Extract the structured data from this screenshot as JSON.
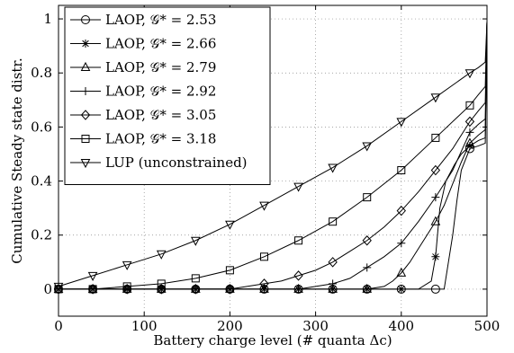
{
  "chart_data": {
    "type": "line",
    "xlabel": "Battery charge level (# quanta Δc)",
    "ylabel": "Cumulative Steady state distr.",
    "xlim": [
      0,
      500
    ],
    "ylim": [
      -0.1,
      1.05
    ],
    "xticks": [
      0,
      100,
      200,
      300,
      400,
      500
    ],
    "yticks": [
      0,
      0.2,
      0.4,
      0.6,
      0.8,
      1
    ],
    "grid": true,
    "legend_position": "top-left",
    "series": [
      {
        "label": "LAOP, 𝒢* = 2.53",
        "marker": "circle",
        "markers": [
          [
            0,
            0
          ],
          [
            40,
            0
          ],
          [
            80,
            0
          ],
          [
            120,
            0
          ],
          [
            160,
            0
          ],
          [
            200,
            0
          ],
          [
            240,
            0
          ],
          [
            280,
            0
          ],
          [
            320,
            0
          ],
          [
            360,
            0
          ],
          [
            400,
            0
          ],
          [
            440,
            0
          ],
          [
            480,
            0.52
          ]
        ],
        "line": [
          [
            0,
            0
          ],
          [
            440,
            0
          ],
          [
            450,
            0
          ],
          [
            455,
            0.1
          ],
          [
            460,
            0.2
          ],
          [
            465,
            0.33
          ],
          [
            470,
            0.44
          ],
          [
            480,
            0.52
          ],
          [
            490,
            0.53
          ],
          [
            498,
            0.54
          ],
          [
            500,
            0.99
          ]
        ]
      },
      {
        "label": "LAOP, 𝒢* = 2.66",
        "marker": "star",
        "markers": [
          [
            0,
            0
          ],
          [
            40,
            0
          ],
          [
            80,
            0
          ],
          [
            120,
            0
          ],
          [
            160,
            0
          ],
          [
            200,
            0
          ],
          [
            240,
            0
          ],
          [
            280,
            0
          ],
          [
            320,
            0
          ],
          [
            360,
            0
          ],
          [
            400,
            0
          ],
          [
            440,
            0.12
          ],
          [
            480,
            0.53
          ]
        ],
        "line": [
          [
            0,
            0
          ],
          [
            420,
            0
          ],
          [
            435,
            0.03
          ],
          [
            440,
            0.12
          ],
          [
            445,
            0.3
          ],
          [
            452,
            0.4
          ],
          [
            462,
            0.46
          ],
          [
            470,
            0.5
          ],
          [
            480,
            0.53
          ],
          [
            490,
            0.55
          ],
          [
            498,
            0.56
          ],
          [
            500,
            0.99
          ]
        ]
      },
      {
        "label": "LAOP, 𝒢* = 2.79",
        "marker": "triangle-up",
        "markers": [
          [
            0,
            0
          ],
          [
            40,
            0
          ],
          [
            80,
            0
          ],
          [
            120,
            0
          ],
          [
            160,
            0
          ],
          [
            200,
            0
          ],
          [
            240,
            0
          ],
          [
            280,
            0
          ],
          [
            320,
            0
          ],
          [
            360,
            0
          ],
          [
            400,
            0.06
          ],
          [
            440,
            0.25
          ],
          [
            480,
            0.54
          ]
        ],
        "line": [
          [
            0,
            0
          ],
          [
            360,
            0
          ],
          [
            380,
            0.01
          ],
          [
            390,
            0.03
          ],
          [
            400,
            0.06
          ],
          [
            410,
            0.1
          ],
          [
            420,
            0.15
          ],
          [
            430,
            0.2
          ],
          [
            440,
            0.25
          ],
          [
            450,
            0.31
          ],
          [
            460,
            0.39
          ],
          [
            470,
            0.47
          ],
          [
            480,
            0.54
          ],
          [
            490,
            0.57
          ],
          [
            498,
            0.59
          ],
          [
            500,
            0.99
          ]
        ]
      },
      {
        "label": "LAOP, 𝒢* = 2.92",
        "marker": "plus",
        "markers": [
          [
            0,
            0
          ],
          [
            40,
            0
          ],
          [
            80,
            0
          ],
          [
            120,
            0
          ],
          [
            160,
            0
          ],
          [
            200,
            0
          ],
          [
            240,
            0
          ],
          [
            280,
            0
          ],
          [
            320,
            0.02
          ],
          [
            360,
            0.08
          ],
          [
            400,
            0.17
          ],
          [
            440,
            0.34
          ],
          [
            480,
            0.58
          ]
        ],
        "line": [
          [
            0,
            0
          ],
          [
            280,
            0
          ],
          [
            300,
            0.01
          ],
          [
            320,
            0.02
          ],
          [
            340,
            0.04
          ],
          [
            360,
            0.08
          ],
          [
            380,
            0.12
          ],
          [
            400,
            0.17
          ],
          [
            420,
            0.25
          ],
          [
            440,
            0.34
          ],
          [
            460,
            0.44
          ],
          [
            480,
            0.58
          ],
          [
            490,
            0.61
          ],
          [
            498,
            0.63
          ],
          [
            500,
            0.99
          ]
        ]
      },
      {
        "label": "LAOP, 𝒢* = 3.05",
        "marker": "diamond",
        "markers": [
          [
            0,
            0
          ],
          [
            40,
            0
          ],
          [
            80,
            0
          ],
          [
            120,
            0
          ],
          [
            160,
            0
          ],
          [
            200,
            0
          ],
          [
            240,
            0.02
          ],
          [
            280,
            0.05
          ],
          [
            320,
            0.1
          ],
          [
            360,
            0.18
          ],
          [
            400,
            0.29
          ],
          [
            440,
            0.44
          ],
          [
            480,
            0.62
          ]
        ],
        "line": [
          [
            0,
            0
          ],
          [
            200,
            0
          ],
          [
            220,
            0.01
          ],
          [
            240,
            0.02
          ],
          [
            260,
            0.03
          ],
          [
            280,
            0.05
          ],
          [
            300,
            0.07
          ],
          [
            320,
            0.1
          ],
          [
            340,
            0.14
          ],
          [
            360,
            0.18
          ],
          [
            380,
            0.23
          ],
          [
            400,
            0.29
          ],
          [
            420,
            0.36
          ],
          [
            440,
            0.44
          ],
          [
            460,
            0.52
          ],
          [
            480,
            0.62
          ],
          [
            490,
            0.66
          ],
          [
            498,
            0.69
          ],
          [
            500,
            0.99
          ]
        ]
      },
      {
        "label": "LAOP, 𝒢* = 3.18",
        "marker": "square",
        "markers": [
          [
            0,
            0
          ],
          [
            40,
            0
          ],
          [
            80,
            0.01
          ],
          [
            120,
            0.02
          ],
          [
            160,
            0.04
          ],
          [
            200,
            0.07
          ],
          [
            240,
            0.12
          ],
          [
            280,
            0.18
          ],
          [
            320,
            0.25
          ],
          [
            360,
            0.34
          ],
          [
            400,
            0.44
          ],
          [
            440,
            0.56
          ],
          [
            480,
            0.68
          ]
        ],
        "line": [
          [
            0,
            0
          ],
          [
            40,
            0
          ],
          [
            80,
            0.01
          ],
          [
            120,
            0.02
          ],
          [
            160,
            0.04
          ],
          [
            200,
            0.07
          ],
          [
            240,
            0.12
          ],
          [
            280,
            0.18
          ],
          [
            320,
            0.25
          ],
          [
            360,
            0.34
          ],
          [
            400,
            0.44
          ],
          [
            440,
            0.56
          ],
          [
            480,
            0.68
          ],
          [
            490,
            0.72
          ],
          [
            498,
            0.75
          ],
          [
            500,
            0.99
          ]
        ]
      },
      {
        "label": "LUP (unconstrained)",
        "marker": "triangle-down",
        "markers": [
          [
            0,
            0.01
          ],
          [
            40,
            0.05
          ],
          [
            80,
            0.09
          ],
          [
            120,
            0.13
          ],
          [
            160,
            0.18
          ],
          [
            200,
            0.24
          ],
          [
            240,
            0.31
          ],
          [
            280,
            0.38
          ],
          [
            320,
            0.45
          ],
          [
            360,
            0.53
          ],
          [
            400,
            0.62
          ],
          [
            440,
            0.71
          ],
          [
            480,
            0.8
          ]
        ],
        "line": [
          [
            0,
            0.01
          ],
          [
            40,
            0.05
          ],
          [
            80,
            0.09
          ],
          [
            120,
            0.13
          ],
          [
            160,
            0.18
          ],
          [
            200,
            0.24
          ],
          [
            240,
            0.31
          ],
          [
            280,
            0.38
          ],
          [
            320,
            0.45
          ],
          [
            360,
            0.53
          ],
          [
            400,
            0.62
          ],
          [
            440,
            0.71
          ],
          [
            480,
            0.8
          ],
          [
            490,
            0.82
          ],
          [
            498,
            0.84
          ],
          [
            500,
            0.99
          ]
        ]
      }
    ]
  }
}
